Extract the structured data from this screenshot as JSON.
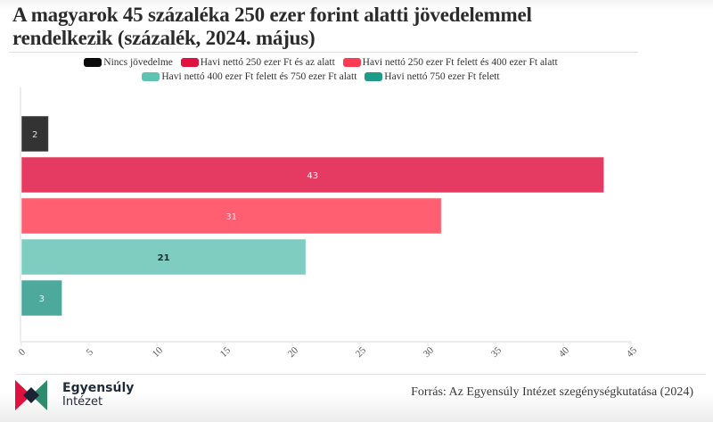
{
  "chart_data": {
    "type": "bar",
    "orientation": "horizontal",
    "title": "A magyarok 45 százaléka 250 ezer forint alatti jövedelemmel rendelkezik (százalék, 2024. május)",
    "xlabel": "",
    "ylabel": "",
    "xlim": [
      0,
      45
    ],
    "x_ticks": [
      0,
      5,
      10,
      15,
      20,
      25,
      30,
      35,
      40,
      45
    ],
    "grid": false,
    "legend_position": "top-center",
    "series": [
      {
        "name": "Nincs jövedelme",
        "value": 2,
        "color": "#333333",
        "label_color": "#dddddd"
      },
      {
        "name": "Havi nettó 250 ezer Ft és az alatt",
        "value": 43,
        "color": "#e53b62",
        "label_color": "#ffffff"
      },
      {
        "name": "Havi nettó 250 ezer Ft felett és 400 ezer Ft alatt",
        "value": 31,
        "color": "#ff5f70",
        "label_color": "#ffe5e8"
      },
      {
        "name": "Havi nettó 400 ezer Ft felett és 750 ezer Ft alatt",
        "value": 21,
        "color": "#7ecdc0",
        "label_color": "#1c2b2b"
      },
      {
        "name": "Havi nettó 750 ezer Ft felett",
        "value": 3,
        "color": "#4ea99d",
        "label_color": "#e8f6f3"
      }
    ],
    "legend_swatch_colors": [
      "#0a0a0a",
      "#e0103f",
      "#ff3a52",
      "#5ec3b0",
      "#1e9a88"
    ]
  },
  "header": {
    "title_line1": "A magyarok 45 százaléka 250 ezer forint alatti jövedelemmel",
    "title_line2": "rendelkezik (százalék, 2024. május)"
  },
  "footer": {
    "logo_line1": "Egyensúly",
    "logo_line2": "Intézet",
    "source": "Forrás: Az Egyensúly Intézet szegénységkutatása (2024)"
  }
}
